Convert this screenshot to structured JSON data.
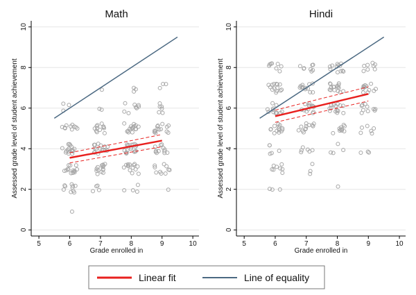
{
  "chart_data": [
    {
      "type": "scatter",
      "title": "Math",
      "xlabel": "Grade enrolled in",
      "ylabel": "Assessed grade level of student achievement",
      "xlim": [
        4.75,
        10.2
      ],
      "ylim": [
        -0.3,
        10.3
      ],
      "xticks": [
        5,
        6,
        7,
        8,
        9,
        10
      ],
      "yticks": [
        0,
        2,
        4,
        6,
        8,
        10
      ],
      "grid": "horizontal",
      "points": [
        [
          6,
          1
        ],
        [
          6,
          2
        ],
        [
          6,
          3
        ],
        [
          6,
          4
        ],
        [
          6,
          5
        ],
        [
          6,
          6
        ],
        [
          7,
          2
        ],
        [
          7,
          3
        ],
        [
          7,
          4
        ],
        [
          7,
          5
        ],
        [
          7,
          6
        ],
        [
          7,
          7
        ],
        [
          8,
          2
        ],
        [
          8,
          3
        ],
        [
          8,
          4
        ],
        [
          8,
          5
        ],
        [
          8,
          6
        ],
        [
          8,
          7
        ],
        [
          9,
          2
        ],
        [
          9,
          3
        ],
        [
          9,
          4
        ],
        [
          9,
          5
        ],
        [
          9,
          6
        ],
        [
          9,
          7
        ]
      ],
      "point_counts": [
        1,
        10,
        14,
        16,
        10,
        3,
        4,
        14,
        16,
        12,
        2,
        1,
        4,
        14,
        18,
        16,
        8,
        3,
        1,
        10,
        12,
        14,
        6,
        3
      ],
      "linear_fit": {
        "x": [
          6,
          9
        ],
        "y": [
          3.55,
          4.4
        ]
      },
      "ci_upper": {
        "x": [
          6,
          9
        ],
        "y": [
          3.8,
          4.7
        ]
      },
      "ci_lower": {
        "x": [
          6,
          9
        ],
        "y": [
          3.3,
          4.1
        ]
      },
      "equality_line": {
        "x": [
          5.5,
          9.5
        ],
        "y": [
          5.5,
          9.5
        ]
      }
    },
    {
      "type": "scatter",
      "title": "Hindi",
      "xlabel": "Grade enrolled in",
      "ylabel": "Assessed grade level of student achievement",
      "xlim": [
        4.75,
        10.2
      ],
      "ylim": [
        -0.3,
        10.3
      ],
      "xticks": [
        5,
        6,
        7,
        8,
        9,
        10
      ],
      "yticks": [
        0,
        2,
        4,
        6,
        8,
        10
      ],
      "grid": "horizontal",
      "points": [
        [
          6,
          2
        ],
        [
          6,
          3
        ],
        [
          6,
          4
        ],
        [
          6,
          5
        ],
        [
          6,
          6
        ],
        [
          6,
          7
        ],
        [
          6,
          8
        ],
        [
          7,
          3
        ],
        [
          7,
          4
        ],
        [
          7,
          5
        ],
        [
          7,
          6
        ],
        [
          7,
          7
        ],
        [
          7,
          8
        ],
        [
          8,
          2
        ],
        [
          8,
          4
        ],
        [
          8,
          5
        ],
        [
          8,
          6
        ],
        [
          8,
          7
        ],
        [
          8,
          8
        ],
        [
          9,
          4
        ],
        [
          9,
          5
        ],
        [
          9,
          6
        ],
        [
          9,
          7
        ],
        [
          9,
          8
        ]
      ],
      "point_counts": [
        3,
        8,
        5,
        14,
        12,
        14,
        8,
        3,
        6,
        12,
        14,
        12,
        8,
        1,
        4,
        10,
        14,
        16,
        12,
        3,
        6,
        10,
        12,
        8
      ],
      "linear_fit": {
        "x": [
          6,
          9
        ],
        "y": [
          5.6,
          6.7
        ]
      },
      "ci_upper": {
        "x": [
          6,
          9
        ],
        "y": [
          5.9,
          7.05
        ]
      },
      "ci_lower": {
        "x": [
          6,
          9
        ],
        "y": [
          5.3,
          6.35
        ]
      },
      "equality_line": {
        "x": [
          5.5,
          9.5
        ],
        "y": [
          5.5,
          9.5
        ]
      }
    }
  ],
  "legend": {
    "position": "bottom",
    "items": [
      {
        "label": "Linear fit",
        "color": "#e8201e"
      },
      {
        "label": "Line of equality",
        "color": "#4b6982"
      }
    ]
  },
  "colors": {
    "fit": "#e8201e",
    "equality": "#4b6982",
    "points": "#a6a6a6",
    "grid": "#e6e6e6",
    "axis": "#000000"
  }
}
